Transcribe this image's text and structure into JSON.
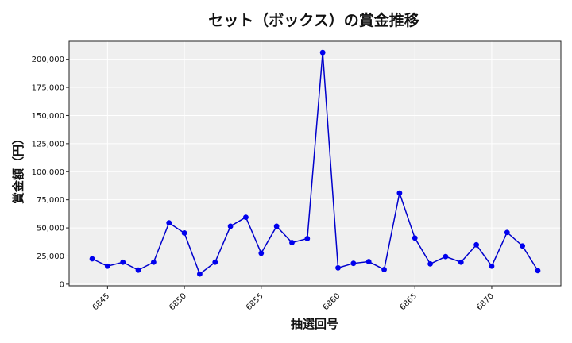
{
  "chart_data": {
    "type": "line",
    "title": "セット（ボックス）の賞金推移",
    "xlabel": "抽選回号",
    "ylabel": "賞金額（円）",
    "x": [
      6844,
      6845,
      6846,
      6847,
      6848,
      6849,
      6850,
      6851,
      6852,
      6853,
      6854,
      6855,
      6856,
      6857,
      6858,
      6859,
      6860,
      6861,
      6862,
      6863,
      6864,
      6865,
      6866,
      6867,
      6868,
      6869,
      6870,
      6871,
      6872,
      6873
    ],
    "series": [
      {
        "values": [
          22500,
          16000,
          19500,
          12500,
          19500,
          54500,
          45500,
          9000,
          19500,
          51500,
          59500,
          27500,
          51500,
          37000,
          40500,
          206000,
          14500,
          18500,
          20000,
          13000,
          81000,
          41000,
          18000,
          24500,
          19500,
          35000,
          16000,
          46000,
          34000,
          12000
        ]
      }
    ],
    "xlim": [
      6842.5,
      6874.5
    ],
    "ylim": [
      -1500,
      216000
    ],
    "xticks": [
      6845,
      6850,
      6855,
      6860,
      6865,
      6870
    ],
    "xtick_labels": [
      "6845",
      "6850",
      "6855",
      "6860",
      "6865",
      "6870"
    ],
    "yticks": [
      0,
      25000,
      50000,
      75000,
      100000,
      125000,
      150000,
      175000,
      200000
    ],
    "ytick_labels": [
      "0",
      "25,000",
      "50,000",
      "75,000",
      "100,000",
      "125,000",
      "150,000",
      "175,000",
      "200,000"
    ],
    "grid": true,
    "colors": {
      "line": "#0000cc",
      "marker": "#0000ee",
      "plot_bg": "#efefef",
      "grid": "#ffffff"
    }
  }
}
